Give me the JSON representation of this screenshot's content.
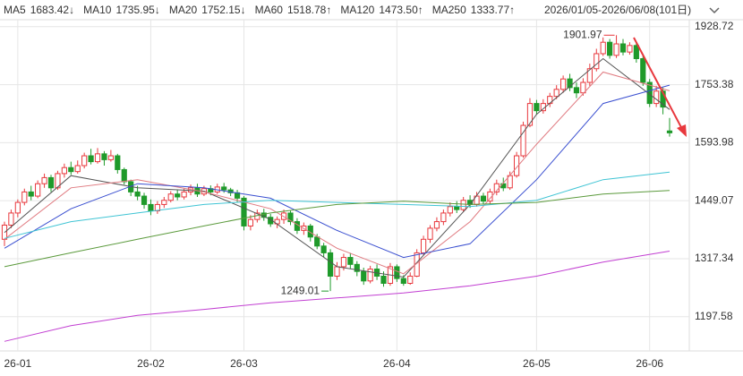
{
  "chart_data": {
    "type": "candlestick",
    "range_label": "2026/01/05-2026/06/08(101日)",
    "log_scale": true,
    "grid": true,
    "up_color": "#e8383d",
    "down_color": "#1f9a2a",
    "ylim": [
      1132,
      1951
    ],
    "yticks": [
      1928.72,
      1753.38,
      1593.98,
      1449.07,
      1317.34,
      1197.58
    ],
    "max_label": "1901.97",
    "min_label": "1249.01",
    "categories": [
      null,
      null,
      "26-01",
      null,
      null,
      null,
      null,
      null,
      null,
      null,
      null,
      null,
      null,
      null,
      null,
      null,
      null,
      null,
      null,
      null,
      null,
      null,
      "26-02",
      null,
      null,
      null,
      null,
      null,
      null,
      null,
      null,
      null,
      null,
      null,
      null,
      null,
      "26-03",
      null,
      null,
      null,
      null,
      null,
      null,
      null,
      null,
      null,
      null,
      null,
      null,
      null,
      null,
      null,
      null,
      null,
      null,
      null,
      null,
      null,
      null,
      "26-04",
      null,
      null,
      null,
      null,
      null,
      null,
      null,
      null,
      null,
      null,
      null,
      null,
      null,
      null,
      null,
      null,
      null,
      null,
      null,
      null,
      "26-05",
      null,
      null,
      null,
      null,
      null,
      null,
      null,
      null,
      null,
      null,
      null,
      null,
      null,
      null,
      null,
      null,
      "26-06",
      null,
      null,
      null
    ],
    "open": [
      1360,
      1392,
      1420,
      1445,
      1470,
      1460,
      1490,
      1505,
      1480,
      1515,
      1530,
      1520,
      1535,
      1560,
      1545,
      1565,
      1550,
      1560,
      1525,
      1495,
      1470,
      1460,
      1440,
      1425,
      1440,
      1450,
      1465,
      1458,
      1470,
      1480,
      1465,
      1478,
      1470,
      1482,
      1475,
      1468,
      1455,
      1390,
      1405,
      1420,
      1410,
      1395,
      1405,
      1420,
      1400,
      1380,
      1390,
      1365,
      1345,
      1330,
      1280,
      1300,
      1320,
      1305,
      1290,
      1270,
      1295,
      1280,
      1265,
      1300,
      1275,
      1265,
      1280,
      1330,
      1360,
      1385,
      1400,
      1420,
      1435,
      1428,
      1450,
      1440,
      1460,
      1448,
      1470,
      1490,
      1480,
      1510,
      1560,
      1640,
      1700,
      1680,
      1700,
      1720,
      1740,
      1770,
      1745,
      1730,
      1760,
      1800,
      1845,
      1880,
      1840,
      1875,
      1850,
      1870,
      1830,
      1760,
      1700,
      1735,
      1625
    ],
    "close": [
      1392,
      1420,
      1445,
      1470,
      1460,
      1490,
      1505,
      1480,
      1515,
      1530,
      1520,
      1535,
      1560,
      1545,
      1565,
      1550,
      1560,
      1525,
      1495,
      1470,
      1460,
      1440,
      1425,
      1440,
      1450,
      1465,
      1458,
      1470,
      1480,
      1465,
      1478,
      1470,
      1482,
      1475,
      1468,
      1455,
      1390,
      1405,
      1420,
      1410,
      1395,
      1405,
      1420,
      1400,
      1380,
      1390,
      1365,
      1345,
      1330,
      1280,
      1300,
      1320,
      1305,
      1290,
      1270,
      1295,
      1280,
      1265,
      1300,
      1275,
      1265,
      1280,
      1330,
      1360,
      1385,
      1400,
      1420,
      1435,
      1428,
      1450,
      1440,
      1460,
      1448,
      1470,
      1490,
      1480,
      1510,
      1560,
      1640,
      1700,
      1680,
      1700,
      1720,
      1740,
      1770,
      1745,
      1730,
      1760,
      1800,
      1845,
      1880,
      1840,
      1875,
      1850,
      1870,
      1830,
      1760,
      1700,
      1735,
      1690,
      1620
    ],
    "high": [
      1400,
      1428,
      1452,
      1478,
      1485,
      1498,
      1515,
      1512,
      1522,
      1540,
      1545,
      1548,
      1568,
      1578,
      1580,
      1572,
      1575,
      1565,
      1530,
      1500,
      1485,
      1468,
      1452,
      1448,
      1458,
      1472,
      1475,
      1478,
      1488,
      1490,
      1485,
      1486,
      1490,
      1492,
      1480,
      1475,
      1460,
      1415,
      1428,
      1430,
      1418,
      1412,
      1428,
      1425,
      1408,
      1398,
      1395,
      1372,
      1352,
      1338,
      1310,
      1328,
      1330,
      1312,
      1298,
      1302,
      1305,
      1290,
      1308,
      1305,
      1282,
      1288,
      1338,
      1368,
      1392,
      1410,
      1428,
      1445,
      1448,
      1458,
      1462,
      1470,
      1468,
      1478,
      1500,
      1505,
      1520,
      1570,
      1650,
      1715,
      1710,
      1712,
      1730,
      1752,
      1780,
      1785,
      1760,
      1772,
      1815,
      1860,
      1895,
      1890,
      1901.97,
      1890,
      1880,
      1878,
      1840,
      1770,
      1750,
      1745,
      1660
    ],
    "low": [
      1345,
      1385,
      1410,
      1438,
      1450,
      1455,
      1480,
      1470,
      1475,
      1505,
      1512,
      1515,
      1528,
      1538,
      1540,
      1535,
      1545,
      1515,
      1488,
      1460,
      1450,
      1430,
      1415,
      1418,
      1432,
      1445,
      1450,
      1452,
      1462,
      1458,
      1460,
      1462,
      1465,
      1468,
      1460,
      1445,
      1380,
      1380,
      1398,
      1402,
      1388,
      1385,
      1395,
      1392,
      1372,
      1370,
      1355,
      1338,
      1320,
      1249.01,
      1272,
      1292,
      1295,
      1280,
      1262,
      1265,
      1272,
      1258,
      1260,
      1268,
      1260,
      1262,
      1278,
      1325,
      1352,
      1378,
      1392,
      1412,
      1420,
      1422,
      1432,
      1435,
      1440,
      1442,
      1462,
      1472,
      1475,
      1505,
      1555,
      1635,
      1670,
      1672,
      1690,
      1712,
      1730,
      1735,
      1715,
      1722,
      1750,
      1792,
      1838,
      1830,
      1832,
      1840,
      1842,
      1818,
      1750,
      1690,
      1690,
      1670,
      1610
    ],
    "series": [
      {
        "name": "MA5",
        "color": "#555555",
        "value_color": "#d0333a",
        "last_label": "1683.42↓",
        "x": [
          0,
          10,
          20,
          30,
          40,
          50,
          60,
          70,
          80,
          90,
          100
        ],
        "values": [
          1375,
          1510,
          1480,
          1472,
          1405,
          1300,
          1278,
          1440,
          1670,
          1830,
          1683.42
        ]
      },
      {
        "name": "MA10",
        "color": "#e07a80",
        "value_color": "#4f86b8",
        "last_label": "1735.95↓",
        "x": [
          0,
          10,
          20,
          30,
          40,
          50,
          60,
          70,
          80,
          90,
          100
        ],
        "values": [
          1360,
          1480,
          1500,
          1470,
          1430,
          1340,
          1285,
          1400,
          1590,
          1790,
          1735.95
        ]
      },
      {
        "name": "MA20",
        "color": "#3a4fd0",
        "value_color": "#3a4fd0",
        "last_label": "1752.15↓",
        "x": [
          0,
          10,
          20,
          30,
          40,
          50,
          60,
          70,
          80,
          90,
          100
        ],
        "values": [
          1340,
          1430,
          1490,
          1480,
          1455,
          1380,
          1320,
          1350,
          1500,
          1700,
          1752.15
        ]
      },
      {
        "name": "MA60",
        "color": "#3fc4d4",
        "value_color": "#2fb0c0",
        "last_label": "1518.78↑",
        "x": [
          0,
          10,
          20,
          30,
          40,
          50,
          60,
          70,
          80,
          90,
          100
        ],
        "values": [
          1362,
          1400,
          1420,
          1440,
          1450,
          1445,
          1440,
          1435,
          1450,
          1500,
          1518.78
        ]
      },
      {
        "name": "MA120",
        "color": "#5b9a3c",
        "value_color": "#3d8a2a",
        "last_label": "1473.50↑",
        "x": [
          0,
          10,
          20,
          30,
          40,
          50,
          60,
          70,
          80,
          90,
          100
        ],
        "values": [
          1300,
          1330,
          1360,
          1390,
          1420,
          1440,
          1448,
          1440,
          1445,
          1465,
          1473.5
        ]
      },
      {
        "name": "MA250",
        "color": "#c23fd2",
        "value_color": "#c23fd2",
        "last_label": "1333.77↑",
        "x": [
          0,
          10,
          20,
          30,
          40,
          50,
          60,
          70,
          80,
          90,
          100
        ],
        "values": [
          1150,
          1180,
          1200,
          1212,
          1225,
          1235,
          1245,
          1260,
          1280,
          1310,
          1333.77
        ]
      }
    ]
  }
}
